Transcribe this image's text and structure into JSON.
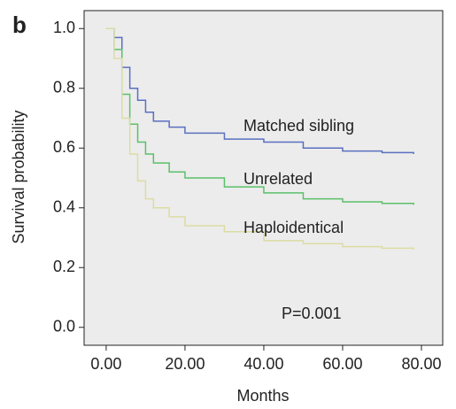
{
  "chart_data": {
    "type": "line",
    "panel_label": "b",
    "x_label": "Months",
    "y_label": "Survival probability",
    "annotation": "P=0.001",
    "xlim": [
      -5.6,
      85.4
    ],
    "ylim": [
      -0.06,
      1.06
    ],
    "xticks": [
      {
        "value": 0,
        "label": "0.00"
      },
      {
        "value": 20,
        "label": "20.00"
      },
      {
        "value": 40,
        "label": "40.00"
      },
      {
        "value": 60,
        "label": "60.00"
      },
      {
        "value": 80,
        "label": "80.00"
      }
    ],
    "yticks": [
      {
        "value": 0,
        "label": "0.0"
      },
      0.2,
      0.4,
      0.6,
      0.8,
      {
        "value": 1,
        "label": "1.0"
      }
    ],
    "x": [
      0,
      2,
      4,
      6,
      8,
      10,
      12,
      16,
      20,
      30,
      40,
      50,
      60,
      70,
      78
    ],
    "series": [
      {
        "name": "Matched sibling",
        "color": "#5a6fc0",
        "values": [
          1,
          0.97,
          0.87,
          0.8,
          0.76,
          0.72,
          0.69,
          0.67,
          0.65,
          0.63,
          0.62,
          0.6,
          0.59,
          0.585,
          0.58
        ]
      },
      {
        "name": "Unrelated",
        "color": "#5bc06a",
        "values": [
          1,
          0.93,
          0.78,
          0.68,
          0.62,
          0.58,
          0.55,
          0.52,
          0.5,
          0.47,
          0.45,
          0.43,
          0.42,
          0.415,
          0.41
        ]
      },
      {
        "name": "Haploidentical",
        "color": "#dcdca4",
        "values": [
          1,
          0.9,
          0.7,
          0.58,
          0.49,
          0.43,
          0.4,
          0.37,
          0.34,
          0.32,
          0.29,
          0.28,
          0.27,
          0.265,
          0.26
        ]
      }
    ]
  }
}
